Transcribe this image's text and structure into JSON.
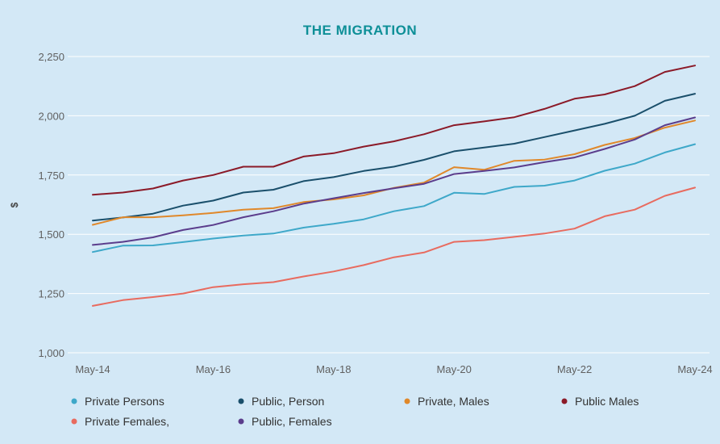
{
  "brand": {
    "name": "THE MIGRATION"
  },
  "colors": {
    "background": "#d3e8f6",
    "gridline": "#ffffff",
    "brand": "#0d8f97"
  },
  "chart_data": {
    "type": "line",
    "title": "",
    "xlabel": "",
    "ylabel": "$",
    "ylim": [
      1000,
      2250
    ],
    "yticks": [
      1000,
      1250,
      1500,
      1750,
      2000,
      2250
    ],
    "ytick_labels": [
      "1,000",
      "1,250",
      "1,500",
      "1,750",
      "2,000",
      "2,250"
    ],
    "x_tick_labels": [
      "May-14",
      "May-16",
      "May-18",
      "May-20",
      "May-22",
      "May-24"
    ],
    "x_tick_index": [
      0,
      4,
      8,
      12,
      16,
      20
    ],
    "x": [
      "May-14",
      "Nov-14",
      "May-15",
      "Nov-15",
      "May-16",
      "Nov-16",
      "May-17",
      "Nov-17",
      "May-18",
      "Nov-18",
      "May-19",
      "Nov-19",
      "May-20",
      "Nov-20",
      "May-21",
      "Nov-21",
      "May-22",
      "Nov-22",
      "May-23",
      "Nov-23",
      "May-24"
    ],
    "grid": true,
    "legend_position": "bottom",
    "series": [
      {
        "name": "Private Persons",
        "color": "#3ea8c9",
        "values": [
          1425,
          1452,
          1453,
          1467,
          1482,
          1495,
          1503,
          1528,
          1544,
          1563,
          1597,
          1619,
          1675,
          1670,
          1700,
          1705,
          1727,
          1768,
          1798,
          1845,
          1880
        ]
      },
      {
        "name": "Public, Person",
        "color": "#1a4f6b",
        "values": [
          1558,
          1571,
          1587,
          1621,
          1642,
          1676,
          1688,
          1724,
          1741,
          1767,
          1785,
          1814,
          1850,
          1866,
          1882,
          1910,
          1938,
          1966,
          2000,
          2063,
          2093
        ]
      },
      {
        "name": "Private, Males",
        "color": "#e0882a",
        "values": [
          1540,
          1572,
          1572,
          1580,
          1590,
          1604,
          1610,
          1636,
          1647,
          1664,
          1696,
          1718,
          1783,
          1772,
          1810,
          1815,
          1838,
          1877,
          1906,
          1950,
          1980
        ]
      },
      {
        "name": "Public Males",
        "color": "#8b1a28",
        "values": [
          1667,
          1676,
          1693,
          1727,
          1750,
          1785,
          1785,
          1828,
          1842,
          1870,
          1892,
          1922,
          1960,
          1976,
          1994,
          2029,
          2072,
          2090,
          2125,
          2185,
          2212
        ]
      },
      {
        "name": "Private Females,",
        "color": "#e86b5f",
        "values": [
          1198,
          1222,
          1235,
          1250,
          1277,
          1289,
          1298,
          1322,
          1343,
          1370,
          1403,
          1423,
          1468,
          1475,
          1489,
          1503,
          1524,
          1576,
          1604,
          1662,
          1697
        ]
      },
      {
        "name": "Public, Females",
        "color": "#5b3d8c",
        "values": [
          1455,
          1468,
          1487,
          1518,
          1539,
          1572,
          1597,
          1629,
          1652,
          1674,
          1694,
          1713,
          1754,
          1767,
          1782,
          1804,
          1824,
          1860,
          1900,
          1960,
          1993
        ]
      }
    ]
  }
}
